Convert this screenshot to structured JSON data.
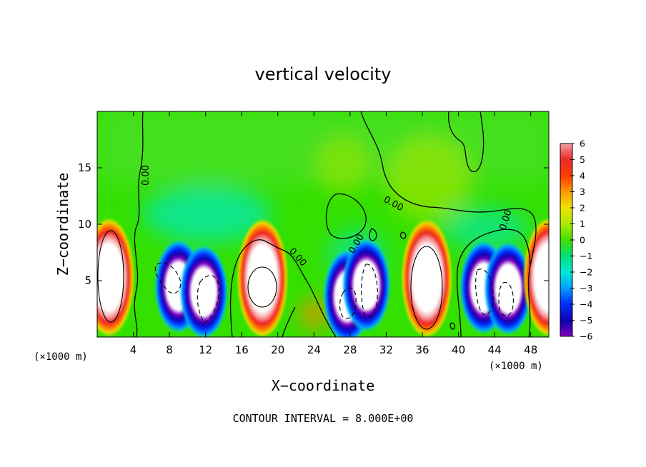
{
  "chart_data": {
    "type": "heatmap",
    "title": "vertical velocity",
    "xlabel": "X−coordinate",
    "ylabel": "Z−coordinate",
    "x_unit_label": "(×1000 m)",
    "xlim": [
      0,
      50
    ],
    "ylim": [
      0,
      20
    ],
    "x_ticks": [
      4,
      8,
      12,
      16,
      20,
      24,
      28,
      32,
      36,
      40,
      44,
      48
    ],
    "y_ticks": [
      5,
      10,
      15
    ],
    "colorbar": {
      "range": [
        -6,
        6
      ],
      "ticks": [
        6,
        5,
        4,
        3,
        2,
        1,
        0,
        -1,
        -2,
        -3,
        -4,
        -5,
        -6
      ],
      "tick_labels": [
        "6",
        "5",
        "4",
        "3",
        "2",
        "1",
        "0",
        "−1",
        "−2",
        "−3",
        "−4",
        "−5",
        "−6"
      ]
    },
    "contour_labels": [
      "0.00",
      "0.00",
      "0.00",
      "0.00",
      "0.00"
    ],
    "footer": "CONTOUR INTERVAL = 8.000E+00",
    "cells": [
      {
        "x": 1.3,
        "z": 5.3,
        "kind": "updraft"
      },
      {
        "x": 9.0,
        "z": 4.5,
        "kind": "downdraft"
      },
      {
        "x": 11.8,
        "z": 4.0,
        "kind": "downdraft"
      },
      {
        "x": 18.3,
        "z": 5.2,
        "kind": "updraft"
      },
      {
        "x": 27.7,
        "z": 3.6,
        "kind": "downdraft"
      },
      {
        "x": 29.8,
        "z": 4.6,
        "kind": "downdraft"
      },
      {
        "x": 36.5,
        "z": 5.2,
        "kind": "updraft"
      },
      {
        "x": 42.8,
        "z": 4.4,
        "kind": "downdraft"
      },
      {
        "x": 45.5,
        "z": 4.3,
        "kind": "downdraft"
      },
      {
        "x": 50.0,
        "z": 5.3,
        "kind": "updraft"
      }
    ]
  }
}
